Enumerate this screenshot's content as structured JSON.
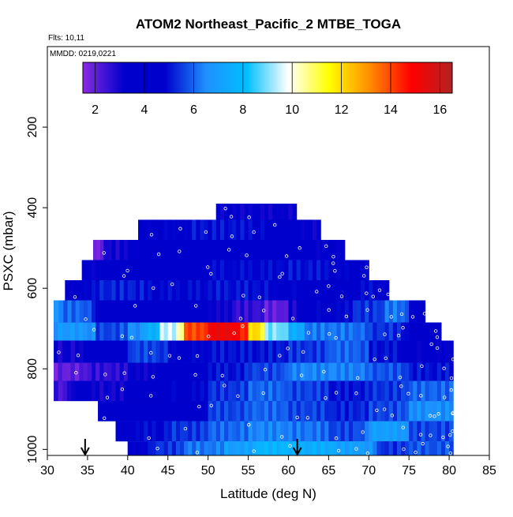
{
  "header": {
    "title": "ATOM2 Northeast_Pacific_2 MTBE_TOGA",
    "flights_label": "Flts: 10,11",
    "dates_label": "MMDD: 0219,0221"
  },
  "chart_data": {
    "type": "heatmap",
    "title": "ATOM2 Northeast_Pacific_2 MTBE_TOGA",
    "xlabel": "Latitude (deg N)",
    "ylabel": "PSXC (mbar)",
    "xlim": [
      30,
      85
    ],
    "ylim": [
      1015,
      0
    ],
    "x_ticks": [
      "30",
      "35",
      "40",
      "45",
      "50",
      "55",
      "60",
      "65",
      "70",
      "75",
      "80",
      "85"
    ],
    "y_ticks": [
      "200",
      "400",
      "600",
      "800",
      "1000"
    ],
    "colorbar": {
      "range": [
        1.5,
        16.5
      ],
      "ticks": [
        "2",
        "4",
        "6",
        "8",
        "10",
        "12",
        "14",
        "16"
      ],
      "colors": [
        "#8B2BE2",
        "#0000CD",
        "#0000CD",
        "#1E90FF",
        "#00BFFF",
        "#FFFFFF",
        "#FFFF00",
        "#FF8C00",
        "#FF0000",
        "#B22222"
      ]
    },
    "bands": [
      {
        "p_top": 390,
        "p_bot": 430,
        "lat_min": 51,
        "lat_max": 61,
        "default": 3.2,
        "segs": [
          [
            51,
            61,
            3.2
          ]
        ]
      },
      {
        "p_top": 430,
        "p_bot": 480,
        "lat_min": 41.3,
        "lat_max": 64,
        "default": 4.0,
        "segs": [
          [
            41.3,
            43,
            3.2
          ],
          [
            43,
            48,
            4.6
          ],
          [
            48,
            57,
            5.0
          ],
          [
            57,
            61,
            4.2
          ],
          [
            61,
            64,
            3.2
          ]
        ]
      },
      {
        "p_top": 480,
        "p_bot": 530,
        "lat_min": 35.7,
        "lat_max": 67,
        "default": 3.4,
        "segs": [
          [
            35.7,
            37,
            1.8
          ],
          [
            37,
            40,
            3.0
          ],
          [
            40,
            47,
            3.6
          ],
          [
            47,
            55,
            4.0
          ],
          [
            55,
            62,
            4.4
          ],
          [
            62,
            67,
            3.4
          ]
        ]
      },
      {
        "p_top": 530,
        "p_bot": 580,
        "lat_min": 34.3,
        "lat_max": 70,
        "default": 3.6,
        "segs": [
          [
            34.3,
            36,
            3.2
          ],
          [
            36,
            42,
            3.8
          ],
          [
            42,
            50,
            4.2
          ],
          [
            50,
            60,
            4.8
          ],
          [
            60,
            65,
            5.0
          ],
          [
            65,
            70,
            4.6
          ]
        ]
      },
      {
        "p_top": 580,
        "p_bot": 630,
        "lat_min": 32.2,
        "lat_max": 72.5,
        "default": 4.2,
        "segs": [
          [
            32.2,
            36,
            4.6
          ],
          [
            36,
            42,
            5.2
          ],
          [
            42,
            50,
            4.8
          ],
          [
            50,
            58,
            5.0
          ],
          [
            58,
            63,
            4.6
          ],
          [
            63,
            68,
            4.2
          ],
          [
            68,
            72.5,
            4.8
          ]
        ]
      },
      {
        "p_top": 630,
        "p_bot": 685,
        "lat_min": 30.8,
        "lat_max": 77,
        "default": 4.0,
        "segs": [
          [
            30.8,
            32,
            6.5
          ],
          [
            32,
            36,
            6.0
          ],
          [
            36,
            42,
            4.2
          ],
          [
            42,
            50,
            3.6
          ],
          [
            50,
            53,
            3.2
          ],
          [
            53,
            57,
            2.6
          ],
          [
            57,
            60,
            2.0
          ],
          [
            60,
            62,
            3.0
          ],
          [
            62,
            68,
            4.6
          ],
          [
            68,
            72,
            5.4
          ],
          [
            72,
            75,
            6.2
          ],
          [
            75,
            77,
            4.2
          ]
        ]
      },
      {
        "p_top": 685,
        "p_bot": 730,
        "lat_min": 30.8,
        "lat_max": 79,
        "default": 5.0,
        "segs": [
          [
            30.8,
            36,
            6.8
          ],
          [
            36,
            40,
            5.6
          ],
          [
            40,
            42,
            6.5
          ],
          [
            42,
            44,
            7.5
          ],
          [
            44,
            47,
            9.5
          ],
          [
            47,
            50,
            14.0
          ],
          [
            50,
            55,
            15.2
          ],
          [
            55,
            57,
            12.0
          ],
          [
            57,
            60,
            9.0
          ],
          [
            60,
            62,
            7.5
          ],
          [
            62,
            70,
            6.2
          ],
          [
            70,
            75,
            5.4
          ],
          [
            75,
            79,
            3.8
          ]
        ]
      },
      {
        "p_top": 730,
        "p_bot": 785,
        "lat_min": 30.8,
        "lat_max": 80.5,
        "default": 4.2,
        "segs": [
          [
            30.8,
            35,
            3.0
          ],
          [
            35,
            40,
            4.0
          ],
          [
            40,
            45,
            5.6
          ],
          [
            45,
            50,
            4.6
          ],
          [
            50,
            60,
            5.0
          ],
          [
            60,
            65,
            5.4
          ],
          [
            65,
            70,
            6.0
          ],
          [
            70,
            75,
            5.0
          ],
          [
            75,
            80.5,
            3.4
          ]
        ]
      },
      {
        "p_top": 785,
        "p_bot": 830,
        "lat_min": 30.8,
        "lat_max": 80.5,
        "default": 3.0,
        "segs": [
          [
            30.8,
            35,
            2.0
          ],
          [
            35,
            40,
            2.6
          ],
          [
            40,
            45,
            3.2
          ],
          [
            45,
            50,
            4.4
          ],
          [
            50,
            55,
            5.0
          ],
          [
            55,
            60,
            5.6
          ],
          [
            60,
            70,
            6.4
          ],
          [
            70,
            75,
            5.8
          ],
          [
            75,
            80.5,
            5.0
          ]
        ]
      },
      {
        "p_top": 830,
        "p_bot": 880,
        "lat_min": 30.8,
        "lat_max": 80.5,
        "default": 4.0,
        "segs": [
          [
            30.8,
            33,
            2.4
          ],
          [
            33,
            36,
            3.4
          ],
          [
            36,
            40,
            3.0
          ],
          [
            40,
            45,
            3.8
          ],
          [
            45,
            50,
            4.6
          ],
          [
            50,
            55,
            5.4
          ],
          [
            55,
            60,
            6.0
          ],
          [
            60,
            65,
            5.6
          ],
          [
            65,
            70,
            5.0
          ],
          [
            70,
            75,
            5.4
          ],
          [
            75,
            80.5,
            6.0
          ]
        ]
      },
      {
        "p_top": 880,
        "p_bot": 930,
        "lat_min": 36.3,
        "lat_max": 80.5,
        "default": 4.8,
        "segs": [
          [
            36.3,
            40,
            3.6
          ],
          [
            40,
            45,
            3.8
          ],
          [
            45,
            50,
            4.2
          ],
          [
            50,
            55,
            5.6
          ],
          [
            55,
            60,
            6.0
          ],
          [
            60,
            65,
            5.6
          ],
          [
            65,
            70,
            5.2
          ],
          [
            70,
            75,
            5.6
          ],
          [
            75,
            80.5,
            6.6
          ]
        ]
      },
      {
        "p_top": 930,
        "p_bot": 980,
        "lat_min": 38.5,
        "lat_max": 80.5,
        "default": 5.0,
        "segs": [
          [
            38.5,
            40,
            4.0
          ],
          [
            40,
            45,
            4.8
          ],
          [
            45,
            50,
            5.4
          ],
          [
            50,
            55,
            6.0
          ],
          [
            55,
            60,
            6.4
          ],
          [
            60,
            65,
            6.2
          ],
          [
            65,
            70,
            5.6
          ],
          [
            70,
            75,
            7.0
          ],
          [
            75,
            80.5,
            5.6
          ]
        ]
      },
      {
        "p_top": 980,
        "p_bot": 1015,
        "lat_min": 40,
        "lat_max": 80.5,
        "default": 6.0,
        "segs": [
          [
            40,
            43,
            4.6
          ],
          [
            43,
            47,
            5.4
          ],
          [
            47,
            52,
            6.2
          ],
          [
            52,
            56,
            7.0
          ],
          [
            56,
            61,
            7.8
          ],
          [
            61,
            66,
            7.5
          ],
          [
            66,
            71,
            7.0
          ],
          [
            71,
            75,
            5.4
          ],
          [
            75,
            80.5,
            5.8
          ]
        ]
      }
    ],
    "arrows_lat": [
      34.7,
      61.1
    ]
  }
}
